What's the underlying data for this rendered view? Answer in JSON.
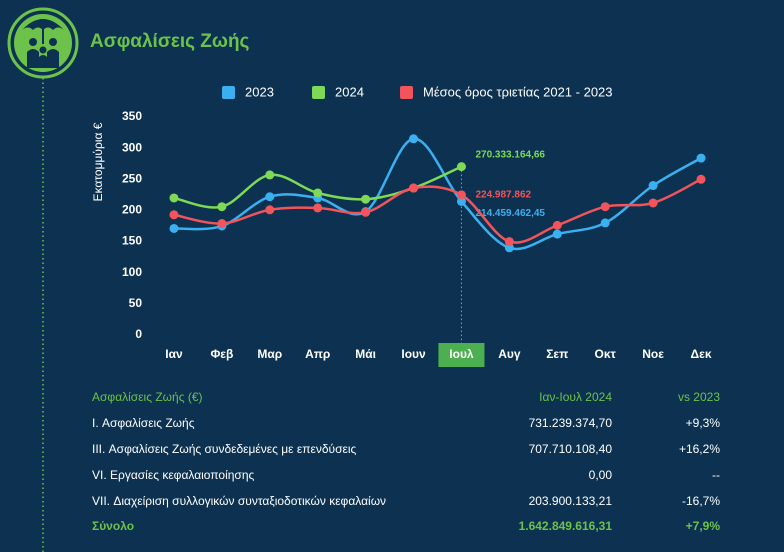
{
  "title": "Ασφαλίσεις Ζωής",
  "chart_data": {
    "type": "line",
    "y_label": "Εκατομμύρια €",
    "categories": [
      "Ιαν",
      "Φεβ",
      "Μαρ",
      "Απρ",
      "Μάι",
      "Ιουν",
      "Ιουλ",
      "Αυγ",
      "Σεπ",
      "Οκτ",
      "Νοε",
      "Δεκ"
    ],
    "highlight_index": 6,
    "series": [
      {
        "name": "2023",
        "color": "#3bb0f0",
        "values": [
          171,
          175,
          222,
          220,
          198,
          315,
          214.45946245,
          140,
          162,
          180,
          240,
          284
        ],
        "value_labels": [
          null,
          null,
          null,
          null,
          null,
          null,
          "214.459.462,45",
          null,
          null,
          null,
          null,
          null
        ]
      },
      {
        "name": "2024",
        "color": "#7ed957",
        "values": [
          220,
          206,
          257,
          228,
          218,
          236,
          270.33316466,
          null,
          null,
          null,
          null,
          null
        ],
        "value_labels": [
          null,
          null,
          null,
          null,
          null,
          null,
          "270.333.164,66",
          null,
          null,
          null,
          null,
          null
        ]
      },
      {
        "name": "Μέσος όρος τριετίας 2021 - 2023",
        "color": "#f2545b",
        "values": [
          193,
          179,
          201,
          204,
          197,
          236,
          224.987862,
          150,
          176,
          206,
          212,
          250
        ],
        "value_labels": [
          null,
          null,
          null,
          null,
          null,
          null,
          "224.987.862",
          null,
          null,
          null,
          null,
          null
        ]
      }
    ],
    "ylim": [
      0,
      350
    ],
    "yticks": [
      0,
      50,
      100,
      150,
      200,
      250,
      300,
      350
    ],
    "grid": false,
    "legend": "top"
  },
  "table": {
    "header": [
      "Ασφαλίσεις Ζωής (€)",
      "Ιαν-Ιουλ 2024",
      "vs 2023"
    ],
    "rows": [
      [
        "I. Ασφαλίσεις  Ζωής",
        "731.239.374,70",
        "+9,3%"
      ],
      [
        "III. Ασφαλίσεις  Ζωής  συνδεδεμένες με επενδύσεις",
        "707.710.108,40",
        "+16,2%"
      ],
      [
        "VI. Εργασίες κεφαλαιοποίησης",
        "0,00",
        "--"
      ],
      [
        "VII. Διαχείριση συλλογικών συνταξιοδοτικών κεφαλαίων",
        "203.900.133,21",
        "-16,7%"
      ]
    ],
    "total": [
      "Σύνολο",
      "1.642.849.616,31",
      "+7,9%"
    ]
  }
}
